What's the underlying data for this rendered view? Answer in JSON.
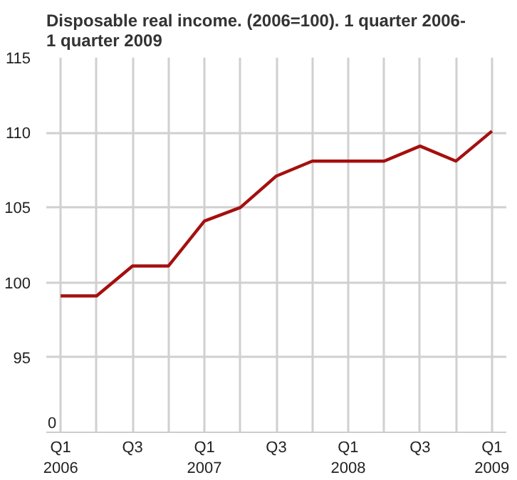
{
  "chart_data": {
    "type": "line",
    "title": "Disposable real income. (2006=100). 1 quarter 2006-\n1 quarter 2009",
    "categories": [
      "Q1\n2006",
      null,
      "Q3",
      null,
      "Q1\n2007",
      null,
      "Q3",
      null,
      "Q1\n2008",
      null,
      "Q3",
      null,
      "Q1\n2009"
    ],
    "series": [
      {
        "color": "#a50f0f",
        "values": [
          99.1,
          99.1,
          101.1,
          101.1,
          104.1,
          105.0,
          107.1,
          108.1,
          108.1,
          108.1,
          109.1,
          108.1,
          110.1
        ]
      }
    ],
    "ylim": [
      90,
      115
    ],
    "yticks": [
      95,
      100,
      105,
      110,
      115
    ],
    "annotations": [
      "0"
    ],
    "grid": true
  }
}
